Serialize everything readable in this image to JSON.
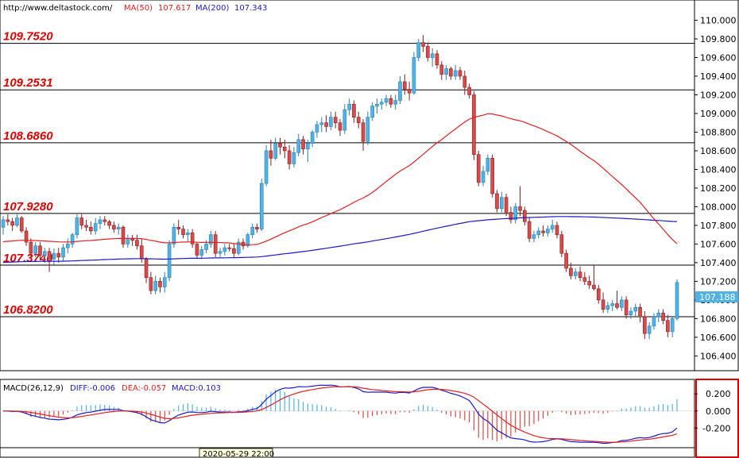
{
  "header": {
    "url": "http://www.deltastock.com/",
    "ma50_label": "MA(50)",
    "ma50_value": "107.617",
    "ma200_label": "MA(200)",
    "ma200_value": "107.343"
  },
  "macd_header": {
    "label": "MACD(26,12,9)",
    "diff": "DIFF:-0.006",
    "dea": "DEA:-0.057",
    "macd": "MACD:0.103"
  },
  "date_label": "2020-05-29 22:00",
  "price_badge": "107.188",
  "colors": {
    "bull": "#4fb3e8",
    "bear": "#d94a4a",
    "ma50": "#e62020",
    "ma200": "#1a1acc",
    "level_text": "#e00000",
    "diff": "#1a1acc",
    "dea": "#e62020",
    "frame_highlight": "#e00000"
  },
  "chart_data": [
    {
      "type": "candlestick",
      "title": "",
      "ylim": [
        106.25,
        110.2
      ],
      "y_ticks": [
        "110.000",
        "109.800",
        "109.600",
        "109.400",
        "109.200",
        "109.000",
        "108.800",
        "108.600",
        "108.400",
        "108.200",
        "108.000",
        "107.800",
        "107.600",
        "107.400",
        "107.200",
        "107.000",
        "106.800",
        "106.600",
        "106.400"
      ],
      "levels": [
        {
          "value": 109.752,
          "label": "109.7520"
        },
        {
          "value": 109.2531,
          "label": "109.2531"
        },
        {
          "value": 108.686,
          "label": "108.6860"
        },
        {
          "value": 107.928,
          "label": "107.9280"
        },
        {
          "value": 107.374,
          "label": "107.3740"
        },
        {
          "value": 106.82,
          "label": "106.8200"
        }
      ],
      "last_price": 107.188,
      "ohlc": [
        [
          107.78,
          107.9,
          107.7,
          107.86
        ],
        [
          107.86,
          107.92,
          107.8,
          107.84
        ],
        [
          107.84,
          107.88,
          107.74,
          107.8
        ],
        [
          107.8,
          107.92,
          107.78,
          107.88
        ],
        [
          107.88,
          107.9,
          107.72,
          107.74
        ],
        [
          107.74,
          107.78,
          107.58,
          107.62
        ],
        [
          107.62,
          107.66,
          107.45,
          107.5
        ],
        [
          107.5,
          107.62,
          107.46,
          107.58
        ],
        [
          107.58,
          107.62,
          107.44,
          107.48
        ],
        [
          107.48,
          107.56,
          107.4,
          107.52
        ],
        [
          107.52,
          107.56,
          107.3,
          107.44
        ],
        [
          107.44,
          107.55,
          107.38,
          107.5
        ],
        [
          107.5,
          107.56,
          107.4,
          107.46
        ],
        [
          107.46,
          107.6,
          107.42,
          107.56
        ],
        [
          107.56,
          107.66,
          107.5,
          107.6
        ],
        [
          107.6,
          107.72,
          107.56,
          107.7
        ],
        [
          107.7,
          107.92,
          107.66,
          107.88
        ],
        [
          107.88,
          107.92,
          107.76,
          107.8
        ],
        [
          107.8,
          107.86,
          107.74,
          107.78
        ],
        [
          107.78,
          107.84,
          107.7,
          107.74
        ],
        [
          107.74,
          107.88,
          107.7,
          107.82
        ],
        [
          107.82,
          107.9,
          107.76,
          107.86
        ],
        [
          107.86,
          107.9,
          107.8,
          107.84
        ],
        [
          107.84,
          107.86,
          107.76,
          107.8
        ],
        [
          107.8,
          107.84,
          107.72,
          107.76
        ],
        [
          107.76,
          107.82,
          107.7,
          107.78
        ],
        [
          107.78,
          107.8,
          107.56,
          107.6
        ],
        [
          107.6,
          107.7,
          107.56,
          107.66
        ],
        [
          107.66,
          107.7,
          107.58,
          107.64
        ],
        [
          107.64,
          107.7,
          107.54,
          107.58
        ],
        [
          107.58,
          107.66,
          107.4,
          107.44
        ],
        [
          107.44,
          107.46,
          107.18,
          107.24
        ],
        [
          107.24,
          107.3,
          107.06,
          107.1
        ],
        [
          107.1,
          107.26,
          107.06,
          107.2
        ],
        [
          107.2,
          107.24,
          107.08,
          107.14
        ],
        [
          107.14,
          107.3,
          107.08,
          107.24
        ],
        [
          107.24,
          107.64,
          107.2,
          107.6
        ],
        [
          107.6,
          107.82,
          107.56,
          107.78
        ],
        [
          107.78,
          107.86,
          107.7,
          107.76
        ],
        [
          107.76,
          107.8,
          107.66,
          107.7
        ],
        [
          107.7,
          107.76,
          107.62,
          107.72
        ],
        [
          107.72,
          107.76,
          107.56,
          107.6
        ],
        [
          107.6,
          107.62,
          107.44,
          107.48
        ],
        [
          107.48,
          107.58,
          107.44,
          107.54
        ],
        [
          107.54,
          107.64,
          107.5,
          107.6
        ],
        [
          107.6,
          107.74,
          107.56,
          107.7
        ],
        [
          107.7,
          107.74,
          107.46,
          107.5
        ],
        [
          107.5,
          107.56,
          107.46,
          107.52
        ],
        [
          107.52,
          107.6,
          107.48,
          107.56
        ],
        [
          107.56,
          107.6,
          107.52,
          107.55
        ],
        [
          107.55,
          107.6,
          107.46,
          107.5
        ],
        [
          107.5,
          107.66,
          107.48,
          107.62
        ],
        [
          107.62,
          107.66,
          107.54,
          107.58
        ],
        [
          107.58,
          107.72,
          107.56,
          107.7
        ],
        [
          107.7,
          107.82,
          107.66,
          107.78
        ],
        [
          107.78,
          107.82,
          107.72,
          107.76
        ],
        [
          107.76,
          108.3,
          107.74,
          108.25
        ],
        [
          108.25,
          108.66,
          108.22,
          108.6
        ],
        [
          108.6,
          108.72,
          108.44,
          108.52
        ],
        [
          108.52,
          108.74,
          108.5,
          108.68
        ],
        [
          108.68,
          108.74,
          108.56,
          108.64
        ],
        [
          108.64,
          108.72,
          108.52,
          108.6
        ],
        [
          108.6,
          108.66,
          108.4,
          108.46
        ],
        [
          108.46,
          108.64,
          108.42,
          108.58
        ],
        [
          108.58,
          108.78,
          108.54,
          108.72
        ],
        [
          108.72,
          108.76,
          108.56,
          108.62
        ],
        [
          108.62,
          108.72,
          108.48,
          108.68
        ],
        [
          108.68,
          108.82,
          108.64,
          108.8
        ],
        [
          108.8,
          108.92,
          108.74,
          108.88
        ],
        [
          108.88,
          108.96,
          108.8,
          108.9
        ],
        [
          108.9,
          108.98,
          108.8,
          108.86
        ],
        [
          108.86,
          109.02,
          108.82,
          108.96
        ],
        [
          108.96,
          109.02,
          108.84,
          108.9
        ],
        [
          108.9,
          108.94,
          108.76,
          108.82
        ],
        [
          108.82,
          109.1,
          108.78,
          109.04
        ],
        [
          109.04,
          109.16,
          108.98,
          109.1
        ],
        [
          109.1,
          109.14,
          108.9,
          108.96
        ],
        [
          108.96,
          109.02,
          108.84,
          108.9
        ],
        [
          108.9,
          108.94,
          108.6,
          108.7
        ],
        [
          108.7,
          109.02,
          108.66,
          108.96
        ],
        [
          108.96,
          109.12,
          108.92,
          109.08
        ],
        [
          109.08,
          109.16,
          109.0,
          109.1
        ],
        [
          109.1,
          109.16,
          109.04,
          109.12
        ],
        [
          109.12,
          109.2,
          109.08,
          109.16
        ],
        [
          109.16,
          109.2,
          109.06,
          109.1
        ],
        [
          109.1,
          109.2,
          109.04,
          109.14
        ],
        [
          109.14,
          109.4,
          109.1,
          109.34
        ],
        [
          109.34,
          109.42,
          109.2,
          109.26
        ],
        [
          109.26,
          109.34,
          109.14,
          109.22
        ],
        [
          109.22,
          109.66,
          109.2,
          109.6
        ],
        [
          109.6,
          109.8,
          109.56,
          109.76
        ],
        [
          109.76,
          109.84,
          109.66,
          109.72
        ],
        [
          109.72,
          109.76,
          109.56,
          109.6
        ],
        [
          109.6,
          109.7,
          109.5,
          109.64
        ],
        [
          109.64,
          109.68,
          109.48,
          109.52
        ],
        [
          109.52,
          109.56,
          109.36,
          109.42
        ],
        [
          109.42,
          109.52,
          109.36,
          109.48
        ],
        [
          109.48,
          109.5,
          109.36,
          109.4
        ],
        [
          109.4,
          109.52,
          109.36,
          109.46
        ],
        [
          109.46,
          109.5,
          109.36,
          109.4
        ],
        [
          109.4,
          109.46,
          109.2,
          109.28
        ],
        [
          109.28,
          109.32,
          109.16,
          109.2
        ],
        [
          109.2,
          109.24,
          108.5,
          108.56
        ],
        [
          108.56,
          108.6,
          108.22,
          108.26
        ],
        [
          108.26,
          108.44,
          108.22,
          108.38
        ],
        [
          108.38,
          108.56,
          108.34,
          108.52
        ],
        [
          108.52,
          108.56,
          108.1,
          108.14
        ],
        [
          108.14,
          108.18,
          107.94,
          107.98
        ],
        [
          107.98,
          108.16,
          107.94,
          108.1
        ],
        [
          108.1,
          108.14,
          107.9,
          107.94
        ],
        [
          107.94,
          108.0,
          107.82,
          107.86
        ],
        [
          107.86,
          108.04,
          107.82,
          108.0
        ],
        [
          108.0,
          108.22,
          107.9,
          107.96
        ],
        [
          107.96,
          108.0,
          107.8,
          107.84
        ],
        [
          107.84,
          107.88,
          107.62,
          107.66
        ],
        [
          107.66,
          107.74,
          107.62,
          107.7
        ],
        [
          107.7,
          107.78,
          107.66,
          107.74
        ],
        [
          107.74,
          107.8,
          107.68,
          107.72
        ],
        [
          107.72,
          107.8,
          107.68,
          107.76
        ],
        [
          107.76,
          107.86,
          107.72,
          107.8
        ],
        [
          107.8,
          107.84,
          107.66,
          107.7
        ],
        [
          107.7,
          107.74,
          107.46,
          107.5
        ],
        [
          107.5,
          107.54,
          107.3,
          107.34
        ],
        [
          107.34,
          107.4,
          107.22,
          107.26
        ],
        [
          107.26,
          107.34,
          107.22,
          107.3
        ],
        [
          107.3,
          107.36,
          107.2,
          107.24
        ],
        [
          107.24,
          107.3,
          107.16,
          107.2
        ],
        [
          107.2,
          107.26,
          107.12,
          107.16
        ],
        [
          107.16,
          107.38,
          107.1,
          107.12
        ],
        [
          107.12,
          107.16,
          106.96,
          107.0
        ],
        [
          107.0,
          107.08,
          106.86,
          106.9
        ],
        [
          106.9,
          106.98,
          106.86,
          106.94
        ],
        [
          106.94,
          107.0,
          106.88,
          106.96
        ],
        [
          106.96,
          107.1,
          106.9,
          106.92
        ],
        [
          106.92,
          107.04,
          106.88,
          107.0
        ],
        [
          107.0,
          107.04,
          106.8,
          106.84
        ],
        [
          106.84,
          106.92,
          106.8,
          106.88
        ],
        [
          106.88,
          106.96,
          106.82,
          106.92
        ],
        [
          106.92,
          106.96,
          106.76,
          106.82
        ],
        [
          106.82,
          106.88,
          106.58,
          106.64
        ],
        [
          106.64,
          106.76,
          106.58,
          106.72
        ],
        [
          106.72,
          106.86,
          106.68,
          106.82
        ],
        [
          106.82,
          106.9,
          106.76,
          106.86
        ],
        [
          106.86,
          106.9,
          106.74,
          106.78
        ],
        [
          106.78,
          106.84,
          106.6,
          106.66
        ],
        [
          106.66,
          106.82,
          106.6,
          106.8
        ],
        [
          106.8,
          107.22,
          106.78,
          107.188
        ]
      ]
    },
    {
      "type": "macd",
      "title": "MACD(26,12,9)",
      "ylim": [
        -0.42,
        0.36
      ],
      "y_ticks": [
        "0.200",
        "0.000",
        "-0.200"
      ]
    }
  ]
}
